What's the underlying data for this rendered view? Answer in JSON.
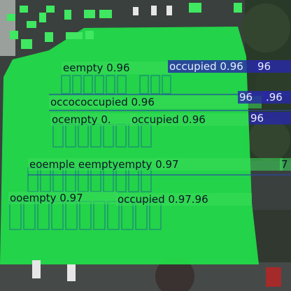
{
  "classes": {
    "empty": {
      "name": "empty",
      "color": "#33cc55"
    },
    "occupied": {
      "name": "occupied",
      "color": "#2a2aa8"
    }
  },
  "labels": [
    {
      "text": "eempty 0.96",
      "cls": "empty"
    },
    {
      "text": "occupied 0.96",
      "cls": "occupied"
    },
    {
      "text": "96",
      "cls": "occupied"
    },
    {
      "text": "occococcupied 0.96",
      "cls": "occ-green"
    },
    {
      "text": "96",
      "cls": "occupied"
    },
    {
      "text": ".96",
      "cls": "occupied"
    },
    {
      "text": "ocempty 0.",
      "cls": "empty"
    },
    {
      "text": "occupied 0.96",
      "cls": "occ-green"
    },
    {
      "text": "96",
      "cls": "occupied"
    },
    {
      "text": "eoemple eemptyempty 0.97",
      "cls": "empty"
    },
    {
      "text": "7",
      "cls": "empty"
    },
    {
      "text": "ooempty 0.97",
      "cls": "empty"
    },
    {
      "text": "occupied 0.97.96",
      "cls": "occ-green"
    }
  ]
}
